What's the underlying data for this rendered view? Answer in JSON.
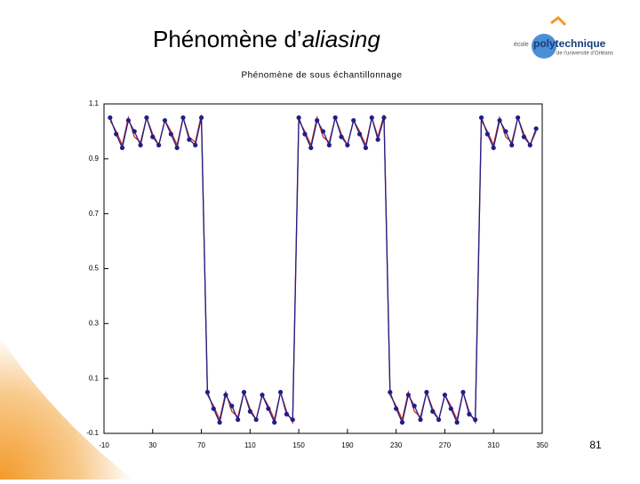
{
  "slide": {
    "title_plain": "Phénomène d’",
    "title_italic": "aliasing",
    "logo": {
      "small": "école",
      "big": "polytechnique",
      "sub": "de l’université d’Orléans"
    },
    "page_number": "81"
  },
  "chart_data": {
    "type": "line",
    "title": "Phénomène de sous échantillonnage",
    "x": [
      -5,
      0,
      5,
      10,
      15,
      20,
      25,
      30,
      35,
      40,
      45,
      50,
      55,
      60,
      65,
      70,
      75,
      80,
      85,
      90,
      95,
      100,
      105,
      110,
      115,
      120,
      125,
      130,
      135,
      140,
      145,
      150,
      155,
      160,
      165,
      170,
      175,
      180,
      185,
      190,
      195,
      200,
      205,
      210,
      215,
      220,
      225,
      230,
      235,
      240,
      245,
      250,
      255,
      260,
      265,
      270,
      275,
      280,
      285,
      290,
      295,
      300,
      305,
      310,
      315,
      320,
      325,
      330,
      335,
      340,
      345
    ],
    "series": [
      {
        "color": "#cc2a1e",
        "values": [
          1.04,
          1.0,
          0.95,
          1.05,
          0.98,
          0.96,
          1.05,
          0.99,
          0.95,
          1.04,
          1.0,
          0.95,
          1.05,
          0.98,
          0.96,
          1.06,
          0.04,
          0.0,
          -0.05,
          0.05,
          -0.02,
          -0.04,
          0.05,
          -0.01,
          -0.05,
          0.04,
          0.0,
          -0.05,
          0.05,
          -0.02,
          -0.06,
          1.04,
          1.0,
          0.95,
          1.05,
          0.98,
          0.96,
          1.05,
          0.99,
          0.95,
          1.04,
          1.0,
          0.95,
          1.05,
          0.98,
          1.06,
          0.04,
          0.0,
          -0.05,
          0.05,
          -0.02,
          -0.04,
          0.05,
          -0.01,
          -0.05,
          0.04,
          0.0,
          -0.05,
          0.05,
          -0.02,
          -0.06,
          1.04,
          1.0,
          0.95,
          1.05,
          0.98,
          0.96,
          1.05,
          0.99,
          0.95,
          1.0
        ]
      },
      {
        "color": "#1f1f8a",
        "marker": "circle",
        "values": [
          1.05,
          0.99,
          0.94,
          1.04,
          1.0,
          0.95,
          1.05,
          0.98,
          0.95,
          1.04,
          0.99,
          0.94,
          1.05,
          0.97,
          0.95,
          1.05,
          0.05,
          -0.01,
          -0.06,
          0.04,
          0.0,
          -0.05,
          0.05,
          -0.02,
          -0.05,
          0.04,
          -0.01,
          -0.06,
          0.05,
          -0.03,
          -0.05,
          1.05,
          0.99,
          0.94,
          1.04,
          1.0,
          0.95,
          1.05,
          0.98,
          0.95,
          1.04,
          0.99,
          0.94,
          1.05,
          0.97,
          1.05,
          0.05,
          -0.01,
          -0.06,
          0.04,
          0.0,
          -0.05,
          0.05,
          -0.02,
          -0.05,
          0.04,
          -0.01,
          -0.06,
          0.05,
          -0.03,
          -0.05,
          1.05,
          0.99,
          0.94,
          1.04,
          1.0,
          0.95,
          1.05,
          0.98,
          0.95,
          1.01
        ]
      }
    ],
    "xlim": [
      -10,
      350
    ],
    "xticks": [
      -10,
      30,
      70,
      110,
      150,
      190,
      230,
      270,
      310,
      350
    ],
    "ylim": [
      -0.1,
      1.1
    ],
    "yticks": [
      -0.1,
      0.1,
      0.3,
      0.5,
      0.7,
      0.9,
      1.1
    ]
  }
}
